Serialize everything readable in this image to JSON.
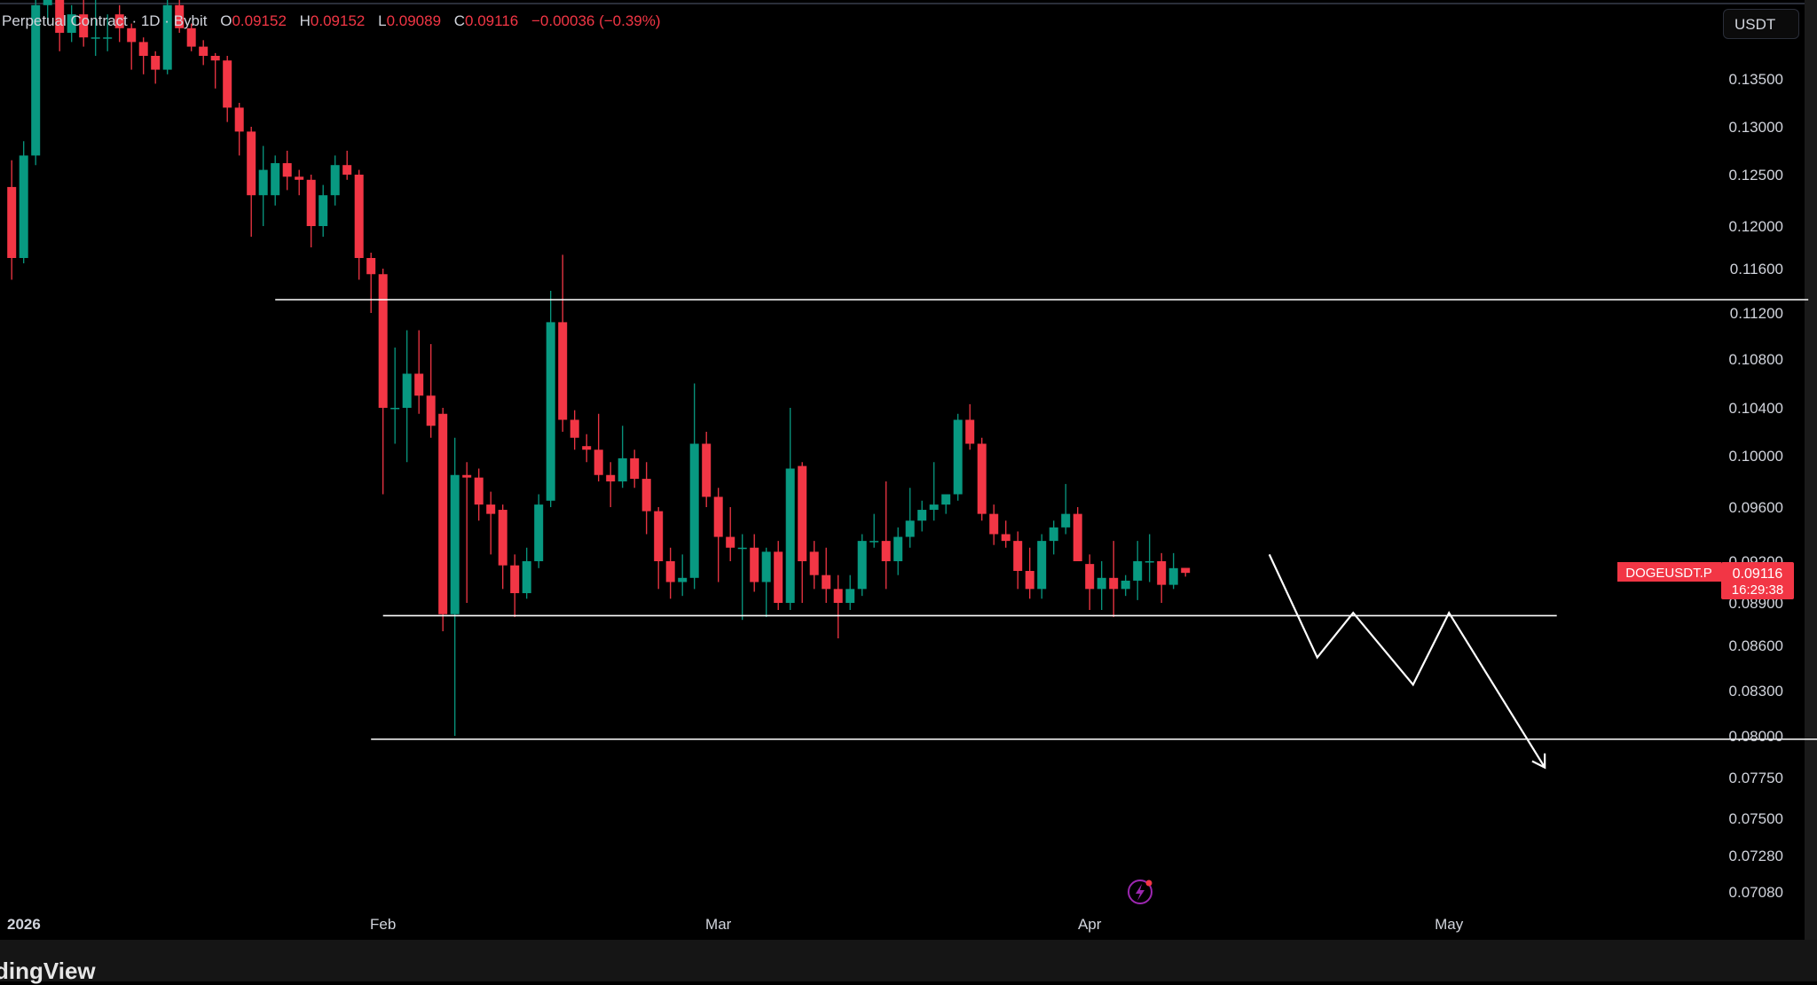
{
  "legend": {
    "symbol_text": "Perpetual Contract · 1D · Bybit",
    "o_label": "O",
    "o_value": "0.09152",
    "h_label": "H",
    "h_value": "0.09152",
    "l_label": "L",
    "l_value": "0.09089",
    "c_label": "C",
    "c_value": "0.09116",
    "change": "−0.00036 (−0.39%)"
  },
  "currency": "USDT",
  "price_tag": {
    "ticker": "DOGEUSDT.P",
    "price": "0.09116",
    "countdown": "16:29:38"
  },
  "branding": "dingView",
  "colors": {
    "up": "#089981",
    "down": "#f23645",
    "drawing": "#ffffff",
    "axis_text": "#d1d4dc",
    "background": "#000000",
    "scale_bg": "#0a0a0a"
  },
  "chart_data": {
    "type": "candlestick",
    "symbol": "DOGEUSDT.P",
    "timeframe": "1D",
    "exchange": "Bybit",
    "y_ticks": [
      "0.13500",
      "0.13000",
      "0.12500",
      "0.12000",
      "0.11600",
      "0.11200",
      "0.10800",
      "0.10400",
      "0.10000",
      "0.09600",
      "0.09200",
      "0.08900",
      "0.08600",
      "0.08300",
      "0.08000",
      "0.07750",
      "0.07500",
      "0.07280",
      "0.07080"
    ],
    "x_labels": [
      "2026",
      "Feb",
      "Mar",
      "Apr",
      "May"
    ],
    "candles": [
      {
        "date": "2026-01-01",
        "o": 0.1238,
        "h": 0.1265,
        "l": 0.115,
        "c": 0.117
      },
      {
        "date": "2026-01-02",
        "o": 0.117,
        "h": 0.1285,
        "l": 0.1165,
        "c": 0.127
      },
      {
        "date": "2026-01-03",
        "o": 0.127,
        "h": 0.144,
        "l": 0.126,
        "c": 0.143
      },
      {
        "date": "2026-01-04",
        "o": 0.143,
        "h": 0.147,
        "l": 0.141,
        "c": 0.145
      },
      {
        "date": "2026-01-05",
        "o": 0.145,
        "h": 0.1455,
        "l": 0.138,
        "c": 0.14
      },
      {
        "date": "2026-01-06",
        "o": 0.14,
        "h": 0.143,
        "l": 0.139,
        "c": 0.142
      },
      {
        "date": "2026-01-07",
        "o": 0.142,
        "h": 0.144,
        "l": 0.1385,
        "c": 0.1395
      },
      {
        "date": "2026-01-08",
        "o": 0.1395,
        "h": 0.144,
        "l": 0.1375,
        "c": 0.1395
      },
      {
        "date": "2026-01-09",
        "o": 0.1395,
        "h": 0.142,
        "l": 0.138,
        "c": 0.1395
      },
      {
        "date": "2026-01-10",
        "o": 0.142,
        "h": 0.143,
        "l": 0.139,
        "c": 0.1405
      },
      {
        "date": "2026-01-11",
        "o": 0.1405,
        "h": 0.141,
        "l": 0.136,
        "c": 0.139
      },
      {
        "date": "2026-01-12",
        "o": 0.139,
        "h": 0.1395,
        "l": 0.1355,
        "c": 0.1375
      },
      {
        "date": "2026-01-13",
        "o": 0.1375,
        "h": 0.138,
        "l": 0.1345,
        "c": 0.136
      },
      {
        "date": "2026-01-14",
        "o": 0.136,
        "h": 0.144,
        "l": 0.1355,
        "c": 0.143
      },
      {
        "date": "2026-01-15",
        "o": 0.143,
        "h": 0.144,
        "l": 0.14,
        "c": 0.1405
      },
      {
        "date": "2026-01-16",
        "o": 0.1405,
        "h": 0.141,
        "l": 0.138,
        "c": 0.1385
      },
      {
        "date": "2026-01-17",
        "o": 0.1385,
        "h": 0.1392,
        "l": 0.1365,
        "c": 0.1375
      },
      {
        "date": "2026-01-18",
        "o": 0.1375,
        "h": 0.1378,
        "l": 0.134,
        "c": 0.137
      },
      {
        "date": "2026-01-19",
        "o": 0.137,
        "h": 0.1375,
        "l": 0.1305,
        "c": 0.132
      },
      {
        "date": "2026-01-20",
        "o": 0.132,
        "h": 0.1325,
        "l": 0.127,
        "c": 0.1295
      },
      {
        "date": "2026-01-21",
        "o": 0.1295,
        "h": 0.13,
        "l": 0.119,
        "c": 0.123
      },
      {
        "date": "2026-01-22",
        "o": 0.123,
        "h": 0.128,
        "l": 0.12,
        "c": 0.1255
      },
      {
        "date": "2026-01-23",
        "o": 0.123,
        "h": 0.127,
        "l": 0.122,
        "c": 0.1262
      },
      {
        "date": "2026-01-24",
        "o": 0.1262,
        "h": 0.1275,
        "l": 0.1235,
        "c": 0.1248
      },
      {
        "date": "2026-01-25",
        "o": 0.1248,
        "h": 0.1255,
        "l": 0.123,
        "c": 0.1245
      },
      {
        "date": "2026-01-26",
        "o": 0.1245,
        "h": 0.125,
        "l": 0.118,
        "c": 0.12
      },
      {
        "date": "2026-01-27",
        "o": 0.12,
        "h": 0.124,
        "l": 0.119,
        "c": 0.123
      },
      {
        "date": "2026-01-28",
        "o": 0.123,
        "h": 0.127,
        "l": 0.122,
        "c": 0.126
      },
      {
        "date": "2026-01-29",
        "o": 0.126,
        "h": 0.1275,
        "l": 0.1245,
        "c": 0.125
      },
      {
        "date": "2026-01-30",
        "o": 0.125,
        "h": 0.1255,
        "l": 0.115,
        "c": 0.117
      },
      {
        "date": "2026-01-31",
        "o": 0.117,
        "h": 0.1175,
        "l": 0.112,
        "c": 0.1155
      },
      {
        "date": "2026-02-01",
        "o": 0.1155,
        "h": 0.116,
        "l": 0.097,
        "c": 0.104
      },
      {
        "date": "2026-02-02",
        "o": 0.104,
        "h": 0.109,
        "l": 0.101,
        "c": 0.104
      },
      {
        "date": "2026-02-03",
        "o": 0.104,
        "h": 0.1105,
        "l": 0.0995,
        "c": 0.1068
      },
      {
        "date": "2026-02-04",
        "o": 0.1068,
        "h": 0.1105,
        "l": 0.1035,
        "c": 0.105
      },
      {
        "date": "2026-02-05",
        "o": 0.105,
        "h": 0.1093,
        "l": 0.1015,
        "c": 0.1025
      },
      {
        "date": "2026-02-06",
        "o": 0.1035,
        "h": 0.104,
        "l": 0.087,
        "c": 0.0882
      },
      {
        "date": "2026-02-07",
        "o": 0.0882,
        "h": 0.1015,
        "l": 0.08,
        "c": 0.0985
      },
      {
        "date": "2026-02-08",
        "o": 0.0985,
        "h": 0.0995,
        "l": 0.089,
        "c": 0.0983
      },
      {
        "date": "2026-02-09",
        "o": 0.0983,
        "h": 0.099,
        "l": 0.095,
        "c": 0.0962
      },
      {
        "date": "2026-02-10",
        "o": 0.0962,
        "h": 0.0972,
        "l": 0.0925,
        "c": 0.0955
      },
      {
        "date": "2026-02-11",
        "o": 0.0958,
        "h": 0.0962,
        "l": 0.09,
        "c": 0.0917
      },
      {
        "date": "2026-02-12",
        "o": 0.0917,
        "h": 0.0925,
        "l": 0.088,
        "c": 0.0897
      },
      {
        "date": "2026-02-13",
        "o": 0.0897,
        "h": 0.093,
        "l": 0.0893,
        "c": 0.092
      },
      {
        "date": "2026-02-14",
        "o": 0.092,
        "h": 0.097,
        "l": 0.0915,
        "c": 0.0962
      },
      {
        "date": "2026-02-15",
        "o": 0.0965,
        "h": 0.114,
        "l": 0.096,
        "c": 0.1112
      },
      {
        "date": "2026-02-16",
        "o": 0.1112,
        "h": 0.1173,
        "l": 0.102,
        "c": 0.103
      },
      {
        "date": "2026-02-17",
        "o": 0.103,
        "h": 0.1038,
        "l": 0.1005,
        "c": 0.1015
      },
      {
        "date": "2026-02-18",
        "o": 0.1008,
        "h": 0.1018,
        "l": 0.0995,
        "c": 0.1005
      },
      {
        "date": "2026-02-19",
        "o": 0.1005,
        "h": 0.1035,
        "l": 0.098,
        "c": 0.0985
      },
      {
        "date": "2026-02-20",
        "o": 0.0985,
        "h": 0.0995,
        "l": 0.096,
        "c": 0.098
      },
      {
        "date": "2026-02-21",
        "o": 0.098,
        "h": 0.1025,
        "l": 0.0975,
        "c": 0.0998
      },
      {
        "date": "2026-02-22",
        "o": 0.0998,
        "h": 0.1005,
        "l": 0.0975,
        "c": 0.0982
      },
      {
        "date": "2026-02-23",
        "o": 0.0982,
        "h": 0.0995,
        "l": 0.094,
        "c": 0.0957
      },
      {
        "date": "2026-02-24",
        "o": 0.0957,
        "h": 0.096,
        "l": 0.09,
        "c": 0.092
      },
      {
        "date": "2026-02-25",
        "o": 0.092,
        "h": 0.093,
        "l": 0.0893,
        "c": 0.0905
      },
      {
        "date": "2026-02-26",
        "o": 0.0905,
        "h": 0.0925,
        "l": 0.0895,
        "c": 0.0908
      },
      {
        "date": "2026-02-27",
        "o": 0.0908,
        "h": 0.106,
        "l": 0.09,
        "c": 0.101
      },
      {
        "date": "2026-02-28",
        "o": 0.101,
        "h": 0.102,
        "l": 0.096,
        "c": 0.0968
      },
      {
        "date": "2026-03-01",
        "o": 0.0968,
        "h": 0.0975,
        "l": 0.0905,
        "c": 0.0938
      },
      {
        "date": "2026-03-02",
        "o": 0.0938,
        "h": 0.096,
        "l": 0.092,
        "c": 0.093
      },
      {
        "date": "2026-03-03",
        "o": 0.093,
        "h": 0.094,
        "l": 0.0878,
        "c": 0.093
      },
      {
        "date": "2026-03-04",
        "o": 0.093,
        "h": 0.094,
        "l": 0.0898,
        "c": 0.0905
      },
      {
        "date": "2026-03-05",
        "o": 0.0905,
        "h": 0.093,
        "l": 0.088,
        "c": 0.0927
      },
      {
        "date": "2026-03-06",
        "o": 0.0927,
        "h": 0.0935,
        "l": 0.0885,
        "c": 0.089
      },
      {
        "date": "2026-03-07",
        "o": 0.089,
        "h": 0.104,
        "l": 0.0885,
        "c": 0.099
      },
      {
        "date": "2026-03-08",
        "o": 0.0992,
        "h": 0.0995,
        "l": 0.089,
        "c": 0.092
      },
      {
        "date": "2026-03-09",
        "o": 0.0927,
        "h": 0.0935,
        "l": 0.09,
        "c": 0.091
      },
      {
        "date": "2026-03-10",
        "o": 0.091,
        "h": 0.093,
        "l": 0.089,
        "c": 0.09
      },
      {
        "date": "2026-03-11",
        "o": 0.09,
        "h": 0.091,
        "l": 0.0865,
        "c": 0.089
      },
      {
        "date": "2026-03-12",
        "o": 0.089,
        "h": 0.091,
        "l": 0.0885,
        "c": 0.09
      },
      {
        "date": "2026-03-13",
        "o": 0.09,
        "h": 0.094,
        "l": 0.0895,
        "c": 0.0935
      },
      {
        "date": "2026-03-14",
        "o": 0.0935,
        "h": 0.0955,
        "l": 0.093,
        "c": 0.0935
      },
      {
        "date": "2026-03-15",
        "o": 0.0935,
        "h": 0.098,
        "l": 0.09,
        "c": 0.092
      },
      {
        "date": "2026-03-16",
        "o": 0.092,
        "h": 0.0945,
        "l": 0.091,
        "c": 0.0938
      },
      {
        "date": "2026-03-17",
        "o": 0.0938,
        "h": 0.0975,
        "l": 0.093,
        "c": 0.095
      },
      {
        "date": "2026-03-18",
        "o": 0.095,
        "h": 0.0965,
        "l": 0.0942,
        "c": 0.0958
      },
      {
        "date": "2026-03-19",
        "o": 0.0958,
        "h": 0.0995,
        "l": 0.095,
        "c": 0.0962
      },
      {
        "date": "2026-03-20",
        "o": 0.0962,
        "h": 0.097,
        "l": 0.0955,
        "c": 0.097
      },
      {
        "date": "2026-03-21",
        "o": 0.097,
        "h": 0.1035,
        "l": 0.0965,
        "c": 0.103
      },
      {
        "date": "2026-03-22",
        "o": 0.103,
        "h": 0.1043,
        "l": 0.1005,
        "c": 0.101
      },
      {
        "date": "2026-03-23",
        "o": 0.101,
        "h": 0.1015,
        "l": 0.095,
        "c": 0.0955
      },
      {
        "date": "2026-03-24",
        "o": 0.0955,
        "h": 0.0962,
        "l": 0.0932,
        "c": 0.094
      },
      {
        "date": "2026-03-25",
        "o": 0.094,
        "h": 0.095,
        "l": 0.093,
        "c": 0.0935
      },
      {
        "date": "2026-03-26",
        "o": 0.0935,
        "h": 0.0942,
        "l": 0.09,
        "c": 0.0913
      },
      {
        "date": "2026-03-27",
        "o": 0.0913,
        "h": 0.093,
        "l": 0.0893,
        "c": 0.09
      },
      {
        "date": "2026-03-28",
        "o": 0.09,
        "h": 0.094,
        "l": 0.0893,
        "c": 0.0935
      },
      {
        "date": "2026-03-29",
        "o": 0.0935,
        "h": 0.095,
        "l": 0.0925,
        "c": 0.0945
      },
      {
        "date": "2026-03-30",
        "o": 0.0945,
        "h": 0.0978,
        "l": 0.094,
        "c": 0.0955
      },
      {
        "date": "2026-03-31",
        "o": 0.0955,
        "h": 0.096,
        "l": 0.092,
        "c": 0.092
      },
      {
        "date": "2026-04-01",
        "o": 0.0918,
        "h": 0.0925,
        "l": 0.0885,
        "c": 0.09
      },
      {
        "date": "2026-04-02",
        "o": 0.09,
        "h": 0.092,
        "l": 0.0885,
        "c": 0.0908
      },
      {
        "date": "2026-04-03",
        "o": 0.0908,
        "h": 0.0935,
        "l": 0.088,
        "c": 0.09
      },
      {
        "date": "2026-04-04",
        "o": 0.09,
        "h": 0.091,
        "l": 0.0895,
        "c": 0.0906
      },
      {
        "date": "2026-04-05",
        "o": 0.0906,
        "h": 0.0935,
        "l": 0.0892,
        "c": 0.092
      },
      {
        "date": "2026-04-06",
        "o": 0.092,
        "h": 0.094,
        "l": 0.0905,
        "c": 0.092
      },
      {
        "date": "2026-04-07",
        "o": 0.092,
        "h": 0.0926,
        "l": 0.089,
        "c": 0.0903
      },
      {
        "date": "2026-04-08",
        "o": 0.0903,
        "h": 0.0926,
        "l": 0.09,
        "c": 0.0915
      },
      {
        "date": "2026-04-09",
        "o": 0.09152,
        "h": 0.09152,
        "l": 0.09089,
        "c": 0.09116
      }
    ],
    "drawings": {
      "horizontal_levels": [
        {
          "price": 0.1132,
          "from": "2026-01-23",
          "to": "2026-05-31"
        },
        {
          "price": 0.0881,
          "from": "2026-02-01",
          "to": "2026-05-10"
        },
        {
          "price": 0.0798,
          "from": "2026-01-31",
          "to": "2026-06-20"
        }
      ],
      "projection_path": [
        {
          "date": "2026-04-16",
          "price": 0.0925
        },
        {
          "date": "2026-04-20",
          "price": 0.0852
        },
        {
          "date": "2026-04-23",
          "price": 0.0883
        },
        {
          "date": "2026-04-28",
          "price": 0.0834
        },
        {
          "date": "2026-05-01",
          "price": 0.0883
        },
        {
          "date": "2026-05-09",
          "price": 0.0781
        }
      ]
    }
  }
}
